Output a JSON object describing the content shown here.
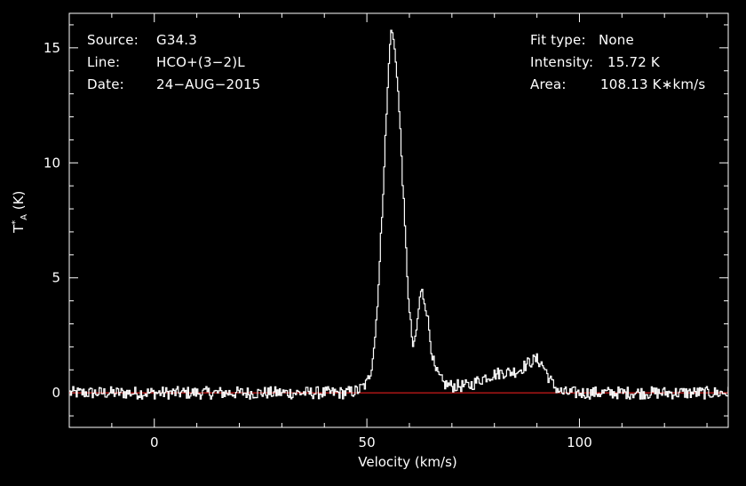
{
  "header": {
    "source_label": "Source:",
    "source_value": "G34.3",
    "line_label": "Line:",
    "line_value": "HCO+(3−2)L",
    "date_label": "Date:",
    "date_value": "24−AUG−2015",
    "fit_label": "Fit type:",
    "fit_value": "None",
    "intensity_label": "Intensity:",
    "intensity_value": "15.72 K",
    "area_label": "Area:",
    "area_value": "108.13 K∗km/s"
  },
  "chart_data": {
    "type": "line",
    "xlabel": "Velocity (km/s)",
    "ylabel_main": "T",
    "ylabel_sup": "*",
    "ylabel_sub": "A",
    "ylabel_unit": "(K)",
    "xlim": [
      -20,
      135
    ],
    "ylim": [
      -1.5,
      16.5
    ],
    "x_ticks": [
      0,
      50,
      100
    ],
    "y_ticks": [
      0,
      5,
      10,
      15
    ],
    "grid": false,
    "baseline": 0,
    "colors": {
      "spectrum": "#ffffff",
      "baseline": "#ff2020",
      "axes": "#ffffff"
    },
    "series": [
      {
        "x": [
          -20,
          -15,
          -10,
          -5,
          0,
          5,
          10,
          15,
          20,
          25,
          30,
          35,
          40,
          45,
          48,
          50,
          51,
          52,
          53,
          54,
          55,
          55.5,
          56,
          57,
          58,
          59,
          60,
          61,
          62,
          62.5,
          63,
          64,
          65,
          66,
          68,
          70,
          72,
          74,
          76,
          78,
          80,
          82,
          84,
          86,
          88,
          89,
          90,
          91,
          92,
          93,
          94,
          96,
          100,
          105,
          110,
          115,
          120,
          125,
          130,
          135
        ],
        "y": [
          0.0,
          0.0,
          0.0,
          0.0,
          0.0,
          0.0,
          0.0,
          0.0,
          0.0,
          0.0,
          0.0,
          0.0,
          0.0,
          0.0,
          0.1,
          0.4,
          1.0,
          2.5,
          5.5,
          9.5,
          13.5,
          15.5,
          15.7,
          14.2,
          11.0,
          7.0,
          3.5,
          1.8,
          3.2,
          4.2,
          4.4,
          3.7,
          2.2,
          1.0,
          0.4,
          0.3,
          0.3,
          0.3,
          0.5,
          0.7,
          0.8,
          0.9,
          0.9,
          1.0,
          1.3,
          1.4,
          1.45,
          1.3,
          1.0,
          0.6,
          0.3,
          0.0,
          0.0,
          0.0,
          0.0,
          0.0,
          0.0,
          0.0,
          0.0,
          0.0
        ]
      }
    ]
  }
}
